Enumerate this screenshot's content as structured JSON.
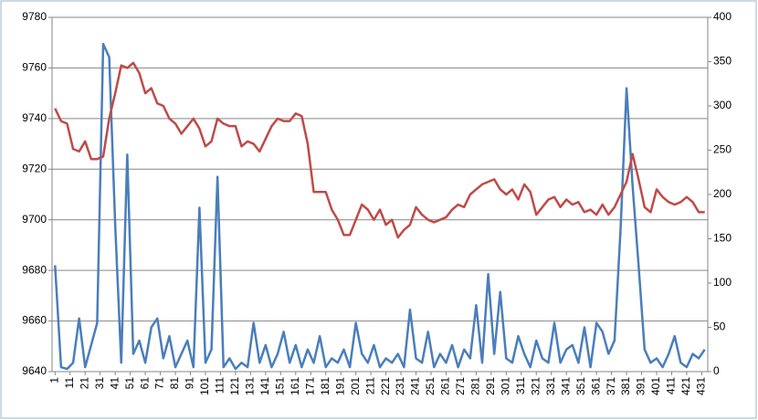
{
  "chart_data": {
    "type": "line",
    "x": [
      1,
      5,
      9,
      13,
      17,
      21,
      25,
      29,
      33,
      37,
      41,
      45,
      49,
      53,
      57,
      61,
      65,
      69,
      73,
      77,
      81,
      85,
      89,
      93,
      97,
      101,
      105,
      109,
      113,
      117,
      121,
      125,
      129,
      133,
      137,
      141,
      145,
      149,
      153,
      157,
      161,
      165,
      169,
      173,
      177,
      181,
      185,
      189,
      193,
      197,
      201,
      205,
      209,
      213,
      217,
      221,
      225,
      229,
      233,
      237,
      241,
      245,
      249,
      253,
      257,
      261,
      265,
      269,
      273,
      277,
      281,
      285,
      289,
      293,
      297,
      301,
      305,
      309,
      313,
      317,
      321,
      325,
      329,
      333,
      337,
      341,
      345,
      349,
      353,
      357,
      361,
      365,
      369,
      373,
      377,
      381,
      385,
      389,
      393,
      397,
      401,
      405,
      409,
      413,
      417,
      421,
      425,
      429,
      433
    ],
    "xlim": [
      -1,
      435
    ],
    "xticks": [
      1,
      11,
      21,
      31,
      41,
      51,
      61,
      71,
      81,
      91,
      101,
      111,
      121,
      131,
      141,
      151,
      161,
      171,
      181,
      191,
      201,
      211,
      221,
      231,
      241,
      251,
      261,
      271,
      281,
      291,
      301,
      311,
      321,
      331,
      341,
      351,
      361,
      371,
      381,
      391,
      401,
      411,
      421,
      431
    ],
    "ylim": [
      9640,
      9780
    ],
    "yticks": [
      9640,
      9660,
      9680,
      9700,
      9720,
      9740,
      9760,
      9780
    ],
    "y2lim": [
      0,
      400
    ],
    "y2ticks": [
      0,
      50,
      100,
      150,
      200,
      250,
      300,
      350,
      400
    ],
    "grid": true,
    "series": [
      {
        "color": "#be4b48",
        "axis": "y",
        "values": [
          9744,
          9739,
          9738,
          9728,
          9727,
          9731,
          9724,
          9724,
          9725,
          9740,
          9750,
          9761,
          9760,
          9762,
          9758,
          9750,
          9752,
          9746,
          9745,
          9740,
          9738,
          9734,
          9737,
          9740,
          9736,
          9729,
          9731,
          9740,
          9738,
          9737,
          9737,
          9729,
          9731,
          9730,
          9727,
          9732,
          9737,
          9740,
          9739,
          9739,
          9742,
          9741,
          9730,
          9711,
          9711,
          9711,
          9704,
          9700,
          9694,
          9694,
          9700,
          9706,
          9704,
          9700,
          9704,
          9698,
          9700,
          9693,
          9696,
          9698,
          9705,
          9702,
          9700,
          9699,
          9700,
          9701,
          9704,
          9706,
          9705,
          9710,
          9712,
          9714,
          9715,
          9716,
          9712,
          9710,
          9712,
          9708,
          9714,
          9711,
          9702,
          9705,
          9708,
          9709,
          9705,
          9708,
          9706,
          9707,
          9703,
          9704,
          9702,
          9706,
          9702,
          9705,
          9710,
          9715,
          9726,
          9716,
          9705,
          9703,
          9712,
          9709,
          9707,
          9706,
          9707,
          9709,
          9707,
          9703,
          9703
        ]
      },
      {
        "color": "#4a7ebb",
        "axis": "y2",
        "values": [
          120,
          5,
          3,
          10,
          60,
          5,
          30,
          55,
          370,
          355,
          165,
          10,
          245,
          20,
          35,
          10,
          50,
          60,
          15,
          40,
          5,
          20,
          35,
          5,
          185,
          10,
          25,
          220,
          5,
          15,
          3,
          10,
          5,
          55,
          10,
          30,
          5,
          20,
          45,
          10,
          30,
          5,
          25,
          10,
          40,
          5,
          15,
          10,
          25,
          5,
          55,
          20,
          10,
          30,
          5,
          15,
          10,
          20,
          5,
          70,
          15,
          10,
          45,
          5,
          20,
          10,
          30,
          5,
          25,
          15,
          75,
          10,
          110,
          20,
          90,
          15,
          10,
          40,
          20,
          5,
          35,
          15,
          10,
          55,
          10,
          25,
          30,
          10,
          50,
          5,
          55,
          45,
          20,
          35,
          160,
          320,
          210,
          120,
          25,
          10,
          15,
          5,
          20,
          40,
          10,
          5,
          20,
          15,
          25
        ]
      }
    ]
  }
}
